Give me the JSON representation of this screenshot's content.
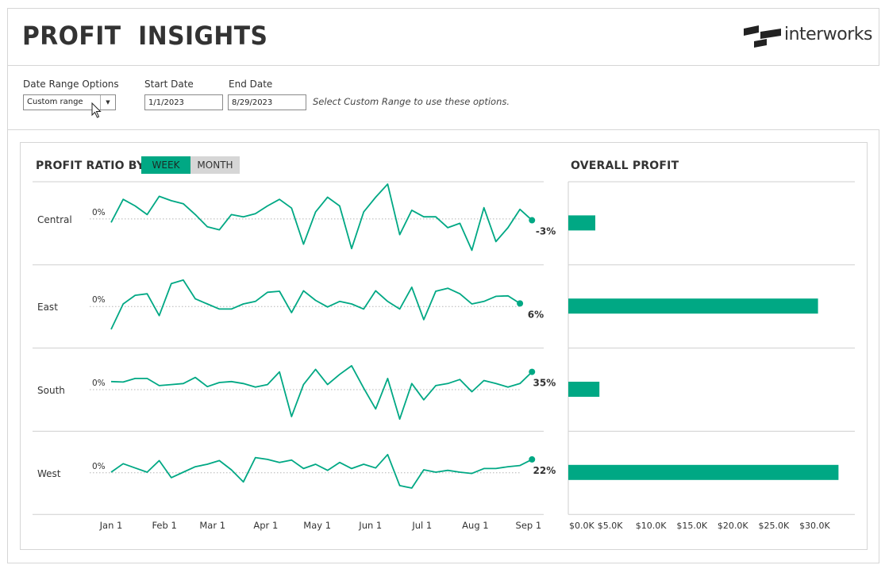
{
  "header": {
    "title": "PROFIT  INSIGHTS",
    "logo_text": "interworks"
  },
  "filters": {
    "date_range_label": "Date Range Options",
    "date_range_value": "Custom range",
    "start_label": "Start Date",
    "start_value": "1/1/2023",
    "end_label": "End Date",
    "end_value": "8/29/2023",
    "hint": "Select Custom Range to use these options."
  },
  "ratio_panel": {
    "title": "PROFIT RATIO BY",
    "toggle_week": "WEEK",
    "toggle_month": "MONTH"
  },
  "profit_panel": {
    "title": "OVERALL PROFIT"
  },
  "colors": {
    "accent": "#00a884",
    "toggle_off": "#d6d6d6",
    "gridline": "#cfcfcf"
  },
  "chart_data": [
    {
      "type": "line",
      "title": "PROFIT RATIO BY",
      "x_ticks": [
        "Jan 1",
        "Feb 1",
        "Mar 1",
        "Apr 1",
        "May 1",
        "Jun 1",
        "Jul 1",
        "Aug 1",
        "Sep 1"
      ],
      "x_week_index_of_ticks": [
        0,
        4.43,
        8.43,
        12.86,
        17.14,
        21.57,
        25.86,
        30.29,
        34.71
      ],
      "zero_label": "0%",
      "series": [
        {
          "name": "Central",
          "last_label": "-3%",
          "ylim": [
            -0.8,
            0.6
          ],
          "values": [
            -0.08,
            0.45,
            0.3,
            0.1,
            0.52,
            0.42,
            0.35,
            0.1,
            -0.18,
            -0.25,
            0.1,
            0.05,
            0.12,
            0.3,
            0.45,
            0.25,
            -0.58,
            0.16,
            0.5,
            0.3,
            -0.68,
            0.16,
            0.5,
            0.8,
            -0.36,
            0.2,
            0.05,
            0.05,
            -0.2,
            -0.1,
            -0.72,
            0.26,
            -0.52,
            -0.2,
            0.22,
            -0.03
          ]
        },
        {
          "name": "East",
          "last_label": "6%",
          "ylim": [
            -0.6,
            0.6
          ],
          "values": [
            -0.45,
            0.05,
            0.22,
            0.25,
            -0.18,
            0.45,
            0.52,
            0.15,
            0.05,
            -0.05,
            -0.05,
            0.05,
            0.1,
            0.28,
            0.3,
            -0.12,
            0.31,
            0.12,
            -0.01,
            0.1,
            0.05,
            -0.05,
            0.31,
            0.1,
            -0.05,
            0.38,
            -0.26,
            0.3,
            0.36,
            0.25,
            0.05,
            0.1,
            0.2,
            0.21,
            0.06
          ]
        },
        {
          "name": "South",
          "last_label": "35%",
          "ylim": [
            -0.6,
            0.6
          ],
          "values": [
            0.16,
            0.15,
            0.22,
            0.22,
            0.08,
            0.1,
            0.12,
            0.24,
            0.06,
            0.14,
            0.16,
            0.12,
            0.05,
            0.1,
            0.35,
            -0.53,
            0.1,
            0.4,
            0.1,
            0.3,
            0.47,
            0.03,
            -0.38,
            0.22,
            -0.58,
            0.12,
            -0.2,
            0.08,
            0.12,
            0.2,
            -0.04,
            0.18,
            0.12,
            0.05,
            0.12,
            0.35
          ]
        },
        {
          "name": "West",
          "last_label": "22%",
          "ylim": [
            -0.5,
            0.5
          ],
          "values": [
            0.01,
            0.15,
            0.08,
            0.01,
            0.2,
            -0.08,
            0.01,
            0.1,
            0.14,
            0.2,
            0.05,
            -0.15,
            0.25,
            0.22,
            0.17,
            0.21,
            0.07,
            0.14,
            0.04,
            0.17,
            0.07,
            0.14,
            0.08,
            0.3,
            -0.21,
            -0.25,
            0.05,
            0.01,
            0.04,
            0.01,
            -0.01,
            0.07,
            0.07,
            0.1,
            0.12,
            0.22
          ]
        }
      ]
    },
    {
      "type": "bar",
      "title": "OVERALL PROFIT",
      "categories": [
        "Central",
        "East",
        "South",
        "West"
      ],
      "values": [
        3300,
        30500,
        3800,
        33000
      ],
      "xlim": [
        0,
        35000
      ],
      "x_ticks": [
        "$0.0K",
        "$5.0K",
        "$10.0K",
        "$15.0K",
        "$20.0K",
        "$25.0K",
        "$30.0K"
      ],
      "x_tick_values": [
        0,
        5000,
        10000,
        15000,
        20000,
        25000,
        30000
      ]
    }
  ]
}
